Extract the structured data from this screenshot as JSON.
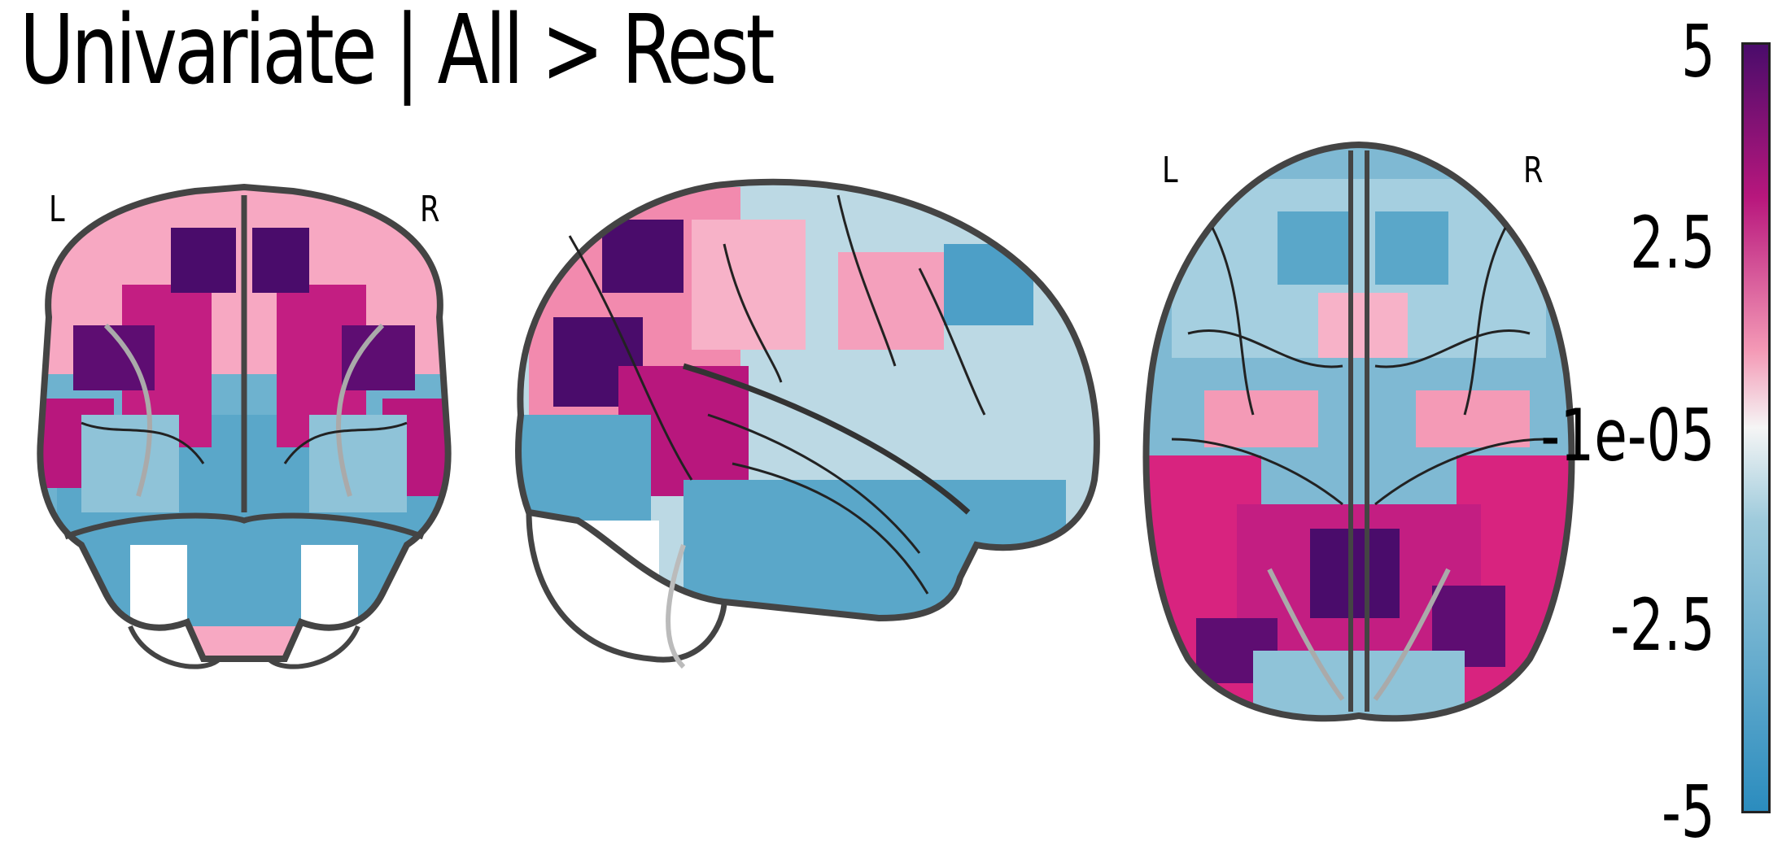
{
  "title": "Univariate | All > Rest",
  "views": {
    "coronal": {
      "left_label": "L",
      "right_label": "R"
    },
    "sagittal": {},
    "axial": {
      "left_label": "L",
      "right_label": "R"
    }
  },
  "colorbar": {
    "ticks": [
      "5",
      "2.5",
      "-1e-05",
      "-2.5",
      "-5"
    ],
    "colors": {
      "max": "#4a0c6b",
      "high": "#b8177d",
      "mid_high": "#f49ab6",
      "zero": "#f5f5f5",
      "mid_low": "#9fcbdc",
      "low": "#2b8cbe"
    }
  }
}
